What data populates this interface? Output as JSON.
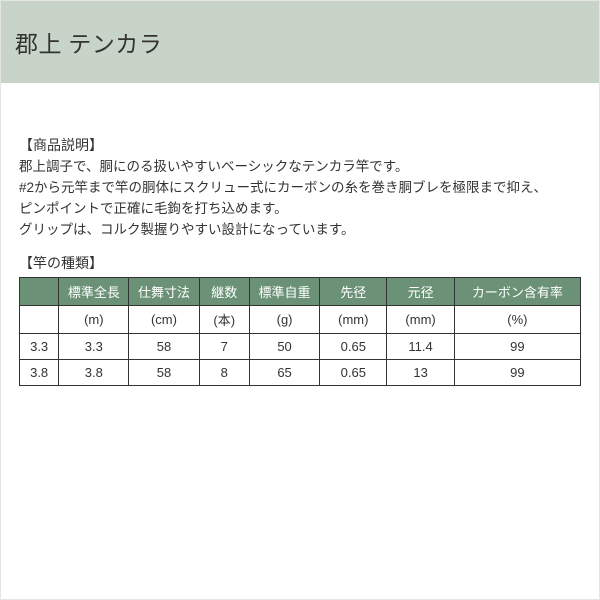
{
  "title": "郡上 テンカラ",
  "description": {
    "heading": "【商品説明】",
    "lines": [
      "郡上調子で、胴にのる扱いやすいベーシックなテンカラ竿です。",
      "#2から元竿まで竿の胴体にスクリュー式にカーボンの糸を巻き胴ブレを極限まで抑え、",
      "ピンポイントで正確に毛鉤を打ち込めます。",
      "グリップは、コルク製握りやすい設計になっています。"
    ]
  },
  "specs": {
    "heading": "【竿の種類】",
    "table": {
      "type": "table",
      "header_bg": "#6b9276",
      "header_fg": "#ffffff",
      "border_color": "#333333",
      "columns": [
        {
          "label": "",
          "unit": "",
          "width": "7%"
        },
        {
          "label": "標準全長",
          "unit": "(m)",
          "width": "12.5%"
        },
        {
          "label": "仕舞寸法",
          "unit": "(cm)",
          "width": "12.5%"
        },
        {
          "label": "継数",
          "unit": "(本)",
          "width": "9%"
        },
        {
          "label": "標準自重",
          "unit": "(g)",
          "width": "12.5%"
        },
        {
          "label": "先径",
          "unit": "(mm)",
          "width": "12%"
        },
        {
          "label": "元径",
          "unit": "(mm)",
          "width": "12%"
        },
        {
          "label": "カーボン含有率",
          "unit": "(%)",
          "width": "22.5%"
        }
      ],
      "rows": [
        [
          "3.3",
          "3.3",
          "58",
          "7",
          "50",
          "0.65",
          "11.4",
          "99"
        ],
        [
          "3.8",
          "3.8",
          "58",
          "8",
          "65",
          "0.65",
          "13",
          "99"
        ]
      ]
    }
  }
}
